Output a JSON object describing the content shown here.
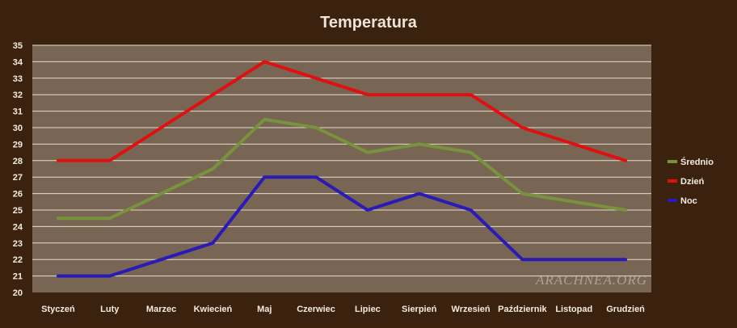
{
  "chart_data": {
    "type": "line",
    "title": "Temperatura",
    "xlabel": "",
    "ylabel": "",
    "categories": [
      "Styczeń",
      "Luty",
      "Marzec",
      "Kwiecień",
      "Maj",
      "Czerwiec",
      "Lipiec",
      "Sierpień",
      "Wrzesień",
      "Październik",
      "Listopad",
      "Grudzień"
    ],
    "ylim": [
      20,
      35
    ],
    "yticks": [
      20,
      21,
      22,
      23,
      24,
      25,
      26,
      27,
      28,
      29,
      30,
      31,
      32,
      33,
      34,
      35
    ],
    "grid": true,
    "legend_position": "right",
    "series": [
      {
        "name": "Średnio",
        "color": "#77933c",
        "values": [
          24.5,
          24.5,
          26,
          27.5,
          30.5,
          30,
          28.5,
          29,
          28.5,
          26,
          25.5,
          25
        ]
      },
      {
        "name": "Dzień",
        "color": "#e01010",
        "values": [
          28,
          28,
          30,
          32,
          34,
          33,
          32,
          32,
          32,
          30,
          29,
          28
        ]
      },
      {
        "name": "Noc",
        "color": "#2a1ab8",
        "values": [
          21,
          21,
          22,
          23,
          27,
          27,
          25,
          26,
          25,
          22,
          22,
          22
        ]
      }
    ]
  },
  "watermark": "ARACHNEA.ORG",
  "colors": {
    "background": "#3b220f",
    "plot_area": "#786553",
    "gridline": "#e6ddd0",
    "text": "#f2ece0",
    "title": "#ece4d8"
  }
}
